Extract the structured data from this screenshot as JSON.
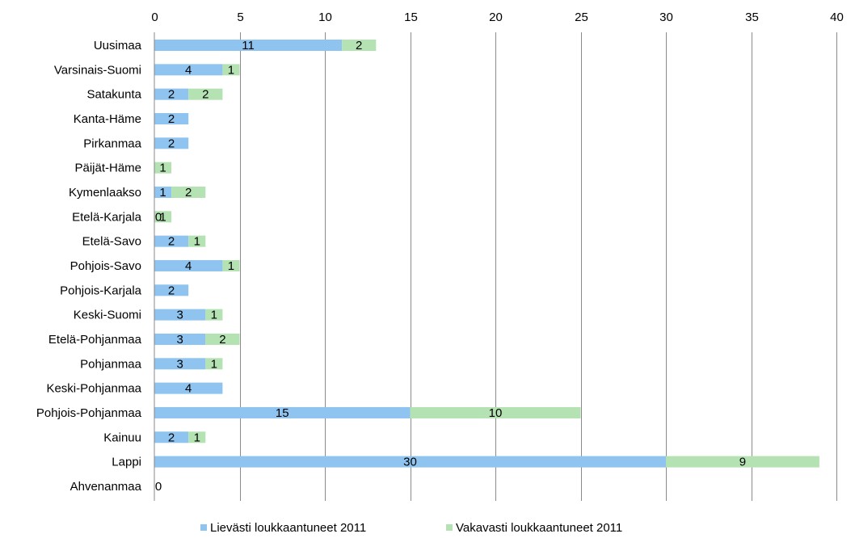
{
  "chart_data": {
    "type": "bar",
    "orientation": "horizontal",
    "stacked": true,
    "title": "",
    "xlabel": "",
    "ylabel": "",
    "xlim": [
      0,
      40
    ],
    "x_ticks": [
      0,
      5,
      10,
      15,
      20,
      25,
      30,
      35,
      40
    ],
    "x_axis_position": "top",
    "grid": true,
    "legend_position": "bottom",
    "categories": [
      "Uusimaa",
      "Varsinais-Suomi",
      "Satakunta",
      "Kanta-Häme",
      "Pirkanmaa",
      "Päijät-Häme",
      "Kymenlaakso",
      "Etelä-Karjala",
      "Etelä-Savo",
      "Pohjois-Savo",
      "Pohjois-Karjala",
      "Keski-Suomi",
      "Etelä-Pohjanmaa",
      "Pohjanmaa",
      "Keski-Pohjanmaa",
      "Pohjois-Pohjanmaa",
      "Kainuu",
      "Lappi",
      "Ahvenanmaa"
    ],
    "series": [
      {
        "name": "Lievästi loukkaantuneet 2011",
        "color": "#8ec4ef",
        "values": [
          11,
          4,
          2,
          2,
          2,
          null,
          1,
          0,
          2,
          4,
          2,
          3,
          3,
          3,
          4,
          15,
          2,
          30,
          0
        ]
      },
      {
        "name": "Vakavasti loukkaantuneet 2011",
        "color": "#b5e2b2",
        "values": [
          2,
          1,
          2,
          null,
          null,
          1,
          2,
          1,
          1,
          1,
          null,
          1,
          2,
          1,
          null,
          10,
          1,
          9,
          null
        ]
      }
    ]
  }
}
